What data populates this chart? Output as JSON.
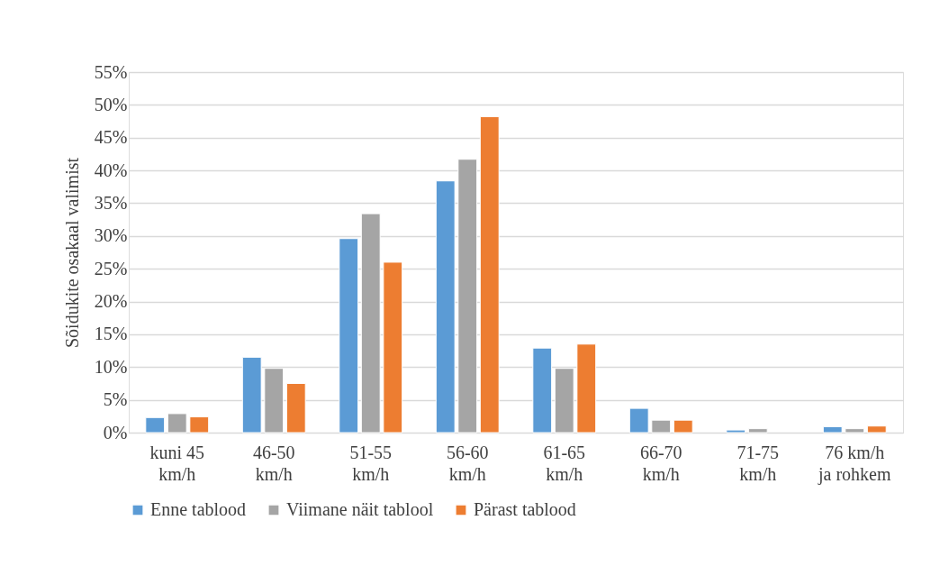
{
  "chart_data": {
    "type": "bar",
    "ylabel": "Sõidukite osakaal valimist",
    "categories": [
      "kuni 45\nkm/h",
      "46-50\nkm/h",
      "51-55\nkm/h",
      "56-60\nkm/h",
      "61-65\nkm/h",
      "66-70\nkm/h",
      "71-75\nkm/h",
      "76 km/h\nja rohkem"
    ],
    "series": [
      {
        "name": "Enne tablood",
        "color": "#5b9bd5",
        "values": [
          2.3,
          11.5,
          29.6,
          38.4,
          12.9,
          3.7,
          0.4,
          0.9
        ]
      },
      {
        "name": "Viimane näit tablool",
        "color": "#a5a5a5",
        "values": [
          2.9,
          9.8,
          33.4,
          41.7,
          9.8,
          1.9,
          0.6,
          0.6
        ]
      },
      {
        "name": "Pärast tablood",
        "color": "#ed7d31",
        "values": [
          2.4,
          7.5,
          26.0,
          48.2,
          13.5,
          1.9,
          null,
          1.0
        ]
      }
    ],
    "ylim": [
      0,
      55
    ],
    "yticks": [
      {
        "value": 0,
        "label": "0%"
      },
      {
        "value": 5,
        "label": "5%"
      },
      {
        "value": 10,
        "label": "10%"
      },
      {
        "value": 15,
        "label": "15%"
      },
      {
        "value": 20,
        "label": "20%"
      },
      {
        "value": 25,
        "label": "25%"
      },
      {
        "value": 30,
        "label": "30%"
      },
      {
        "value": 35,
        "label": "35%"
      },
      {
        "value": 40,
        "label": "40%"
      },
      {
        "value": 45,
        "label": "45%"
      },
      {
        "value": 50,
        "label": "50%"
      },
      {
        "value": 55,
        "label": "55%"
      }
    ],
    "grid": "y",
    "legend": "bottom"
  }
}
